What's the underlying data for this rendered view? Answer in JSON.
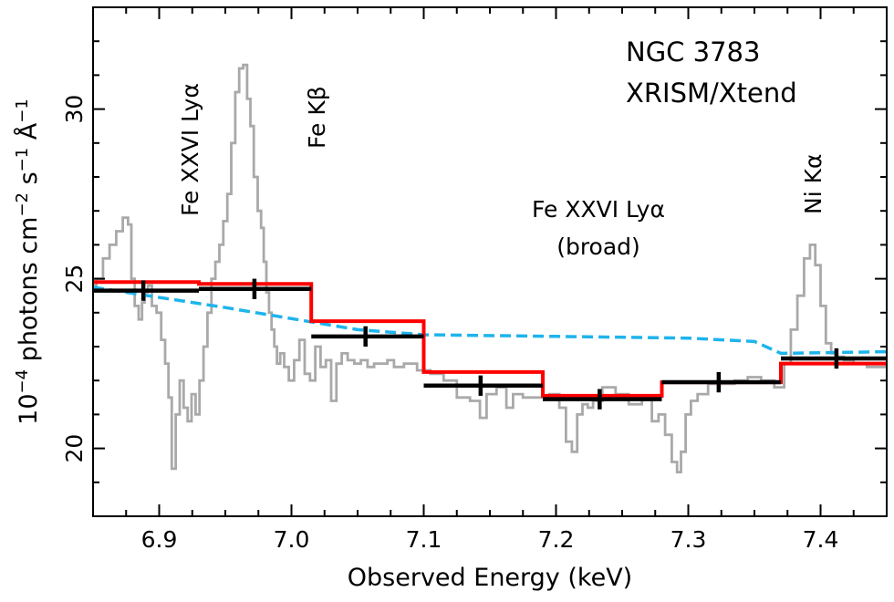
{
  "chart_data": {
    "type": "line",
    "title": "",
    "xlabel": "Observed Energy (keV)",
    "ylabel_parts": {
      "prefix": "10",
      "prefix_exp": "−4",
      "photons": " photons cm",
      "exp1": "−2",
      "s": " s",
      "exp2": "−1",
      "unit": " Å",
      "exp3": "−1"
    },
    "xlim": [
      6.85,
      7.45
    ],
    "ylim": [
      18.0,
      33.0
    ],
    "x_ticks": [
      6.9,
      7.0,
      7.1,
      7.2,
      7.3,
      7.4
    ],
    "x_tick_labels": [
      "6.9",
      "7.0",
      "7.1",
      "7.2",
      "7.3",
      "7.4"
    ],
    "y_ticks": [
      20,
      25,
      30
    ],
    "y_tick_labels": [
      "20",
      "25",
      "30"
    ],
    "annotations": {
      "object": "NGC 3783",
      "instrument": "XRISM/Xtend",
      "fe26_lya_narrow": "Fe XXVI Lyα",
      "fe_kbeta": "Fe Kβ",
      "fe26_lya_broad_line1": "Fe XXVI Lyα",
      "fe26_lya_broad_line2": "(broad)",
      "ni_kalpha": "Ni Kα"
    },
    "series": [
      {
        "name": "High-resolution spectrum (gray)",
        "color": "#a9a9a9",
        "style": "step",
        "x": [
          6.85,
          6.855,
          6.86,
          6.865,
          6.87,
          6.875,
          6.878,
          6.88,
          6.883,
          6.886,
          6.888,
          6.89,
          6.893,
          6.896,
          6.9,
          6.903,
          6.906,
          6.908,
          6.911,
          6.914,
          6.917,
          6.92,
          6.923,
          6.926,
          6.929,
          6.932,
          6.935,
          6.938,
          6.941,
          6.944,
          6.947,
          6.95,
          6.953,
          6.956,
          6.959,
          6.962,
          6.965,
          6.968,
          6.97,
          6.973,
          6.976,
          6.978,
          6.98,
          6.982,
          6.984,
          6.986,
          6.988,
          6.99,
          6.993,
          6.996,
          7.0,
          7.004,
          7.008,
          7.012,
          7.016,
          7.02,
          7.024,
          7.028,
          7.032,
          7.036,
          7.04,
          7.045,
          7.05,
          7.055,
          7.06,
          7.065,
          7.07,
          7.075,
          7.08,
          7.09,
          7.1,
          7.11,
          7.12,
          7.13,
          7.14,
          7.145,
          7.15,
          7.16,
          7.165,
          7.17,
          7.18,
          7.19,
          7.2,
          7.205,
          7.21,
          7.214,
          7.218,
          7.222,
          7.226,
          7.23,
          7.24,
          7.25,
          7.26,
          7.27,
          7.275,
          7.28,
          7.285,
          7.29,
          7.293,
          7.296,
          7.3,
          7.304,
          7.31,
          7.32,
          7.33,
          7.34,
          7.35,
          7.36,
          7.37,
          7.375,
          7.38,
          7.385,
          7.39,
          7.394,
          7.398,
          7.402,
          7.406,
          7.41,
          7.415,
          7.42,
          7.43,
          7.44,
          7.45
        ],
        "y": [
          24.8,
          25.0,
          25.6,
          26.0,
          26.4,
          26.8,
          26.6,
          25.0,
          24.2,
          23.8,
          24.3,
          24.6,
          24.8,
          24.2,
          24.0,
          23.2,
          22.5,
          21.5,
          19.4,
          21.0,
          22.0,
          21.2,
          20.8,
          21.6,
          21.0,
          22.0,
          23.0,
          24.0,
          25.0,
          25.5,
          26.0,
          26.7,
          27.5,
          29.0,
          30.5,
          31.2,
          31.3,
          30.3,
          29.5,
          28.0,
          27.0,
          26.5,
          25.5,
          24.6,
          24.0,
          23.5,
          23.0,
          22.5,
          22.8,
          22.4,
          22.0,
          22.6,
          23.2,
          22.2,
          22.0,
          23.0,
          22.4,
          22.6,
          21.4,
          22.5,
          22.8,
          22.6,
          22.5,
          22.6,
          22.4,
          22.5,
          22.5,
          22.6,
          22.4,
          22.5,
          22.3,
          22.2,
          22.0,
          21.5,
          21.4,
          20.9,
          21.6,
          21.8,
          21.2,
          21.6,
          21.5,
          21.5,
          21.6,
          21.2,
          20.2,
          19.9,
          21.0,
          21.3,
          21.2,
          21.4,
          21.8,
          21.6,
          21.3,
          21.5,
          20.8,
          21.0,
          20.4,
          19.6,
          19.3,
          19.9,
          21.0,
          21.4,
          21.6,
          21.9,
          21.9,
          22.0,
          22.1,
          22.0,
          21.8,
          22.5,
          23.5,
          24.5,
          25.6,
          26.0,
          25.4,
          24.2,
          23.1,
          22.8,
          22.7,
          22.6,
          22.5,
          22.4,
          22.4
        ]
      },
      {
        "name": "Continuum model (dashed)",
        "color": "#1eb4ec",
        "style": "dashed",
        "x": [
          6.85,
          6.95,
          7.05,
          7.1,
          7.2,
          7.3,
          7.35,
          7.37,
          7.45
        ],
        "y": [
          24.75,
          24.15,
          23.5,
          23.35,
          23.3,
          23.25,
          23.15,
          22.8,
          22.85
        ]
      },
      {
        "name": "Low-resolution model (red)",
        "color": "#ff0000",
        "style": "step",
        "edges": [
          6.85,
          6.93,
          7.015,
          7.1,
          7.19,
          7.28,
          7.37,
          7.45
        ],
        "values": [
          24.9,
          24.85,
          23.75,
          22.25,
          21.55,
          21.95,
          22.5
        ]
      },
      {
        "name": "Low-resolution data (black)",
        "color": "#000000",
        "style": "errorbar",
        "x": [
          6.888,
          6.972,
          7.056,
          7.143,
          7.233,
          7.323,
          7.412
        ],
        "xerr_lo": [
          6.85,
          6.93,
          7.015,
          7.1,
          7.19,
          7.28,
          7.37
        ],
        "xerr_hi": [
          6.93,
          7.015,
          7.1,
          7.19,
          7.28,
          7.37,
          7.45
        ],
        "y": [
          24.65,
          24.7,
          23.3,
          21.85,
          21.45,
          21.95,
          22.65
        ],
        "yerr": [
          0.3,
          0.3,
          0.3,
          0.3,
          0.3,
          0.3,
          0.3
        ]
      }
    ]
  }
}
